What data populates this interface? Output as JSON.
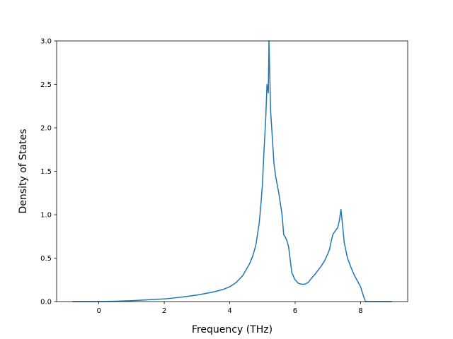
{
  "chart_data": {
    "type": "line",
    "title": "",
    "xlabel": "Frequency (THz)",
    "ylabel": "Density of States",
    "xlim": [
      -1.29,
      9.44
    ],
    "ylim": [
      0.0,
      3.0
    ],
    "xticks": [
      0,
      2,
      4,
      6,
      8
    ],
    "yticks": [
      0.0,
      0.5,
      1.0,
      1.5,
      2.0,
      2.5,
      3.0
    ],
    "xtick_labels": [
      "0",
      "2",
      "4",
      "6",
      "8"
    ],
    "ytick_labels": [
      "0.0",
      "0.5",
      "1.0",
      "1.5",
      "2.0",
      "2.5",
      "3.0"
    ],
    "grid": false,
    "line_color": "#1f77b4",
    "series": [
      {
        "x": [
          -0.8,
          -0.5,
          0.0,
          0.5,
          1.0,
          1.5,
          2.0,
          2.5,
          3.0,
          3.5,
          3.8,
          4.0,
          4.2,
          4.4,
          4.6,
          4.7,
          4.8,
          4.9,
          4.95,
          5.0,
          5.05,
          5.1,
          5.14,
          5.18,
          5.2,
          5.25,
          5.3,
          5.35,
          5.4,
          5.5,
          5.6,
          5.65,
          5.7,
          5.75,
          5.8,
          5.9,
          6.0,
          6.1,
          6.2,
          6.3,
          6.4,
          6.5,
          6.6,
          6.7,
          6.8,
          6.9,
          7.0,
          7.05,
          7.1,
          7.15,
          7.2,
          7.3,
          7.35,
          7.4,
          7.45,
          7.5,
          7.6,
          7.7,
          7.8,
          7.9,
          8.0,
          8.05,
          8.1,
          8.15,
          8.3,
          8.6,
          8.95
        ],
        "y": [
          0.0,
          0.0,
          0.0,
          0.004,
          0.01,
          0.02,
          0.03,
          0.05,
          0.075,
          0.11,
          0.14,
          0.17,
          0.22,
          0.3,
          0.43,
          0.52,
          0.65,
          0.9,
          1.1,
          1.35,
          1.75,
          2.1,
          2.5,
          2.4,
          3.0,
          2.2,
          1.9,
          1.6,
          1.45,
          1.25,
          1.0,
          0.77,
          0.74,
          0.7,
          0.63,
          0.33,
          0.25,
          0.21,
          0.2,
          0.2,
          0.22,
          0.27,
          0.31,
          0.36,
          0.41,
          0.47,
          0.55,
          0.6,
          0.69,
          0.77,
          0.8,
          0.85,
          0.93,
          1.06,
          0.88,
          0.68,
          0.5,
          0.4,
          0.31,
          0.24,
          0.17,
          0.11,
          0.05,
          0.0,
          0.0,
          0.0,
          0.0
        ]
      }
    ]
  }
}
